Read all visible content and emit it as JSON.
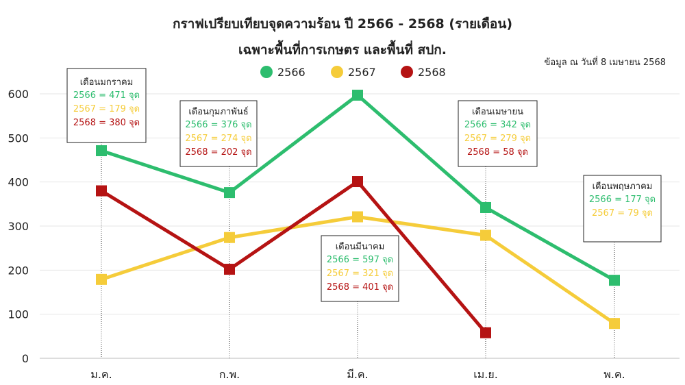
{
  "title_line1": "กราฟเปรียบเทียบจุดความร้อน ปี 2566 - 2568 (รายเดือน)",
  "title_line2": "เฉพาะพื้นที่การเกษตร และพื้นที่ สปก.",
  "data_note": "ข้อมูล ณ วันที่ 8 เมษายน 2568",
  "chart_data": {
    "type": "line",
    "categories": [
      "ม.ค.",
      "ก.พ.",
      "มี.ค.",
      "เม.ย.",
      "พ.ค."
    ],
    "ylim": [
      0,
      600
    ],
    "yticks": [
      0,
      100,
      200,
      300,
      400,
      500,
      600
    ],
    "grid": true,
    "legend_position": "top-center",
    "series": [
      {
        "name": "2566",
        "color": "#2dbd6e",
        "values": [
          471,
          376,
          597,
          342,
          177
        ]
      },
      {
        "name": "2567",
        "color": "#f5cc3a",
        "values": [
          179,
          274,
          321,
          279,
          79
        ]
      },
      {
        "name": "2568",
        "color": "#b51313",
        "values": [
          380,
          202,
          401,
          58,
          null
        ]
      }
    ],
    "annotations": [
      {
        "month_index": 0,
        "title": "เดือนมกราคม",
        "lines": [
          {
            "text": "2566 = 471 จุด",
            "color": "#2dbd6e"
          },
          {
            "text": "2567 = 179 จุด",
            "color": "#f5cc3a"
          },
          {
            "text": "2568 = 380 จุด",
            "color": "#b51313"
          }
        ]
      },
      {
        "month_index": 1,
        "title": "เดือนกุมภาพันธ์",
        "lines": [
          {
            "text": "2566 = 376 จุด",
            "color": "#2dbd6e"
          },
          {
            "text": "2567 = 274 จุด",
            "color": "#f5cc3a"
          },
          {
            "text": "2568 = 202 จุด",
            "color": "#b51313"
          }
        ]
      },
      {
        "month_index": 2,
        "title": "เดือนมีนาคม",
        "lines": [
          {
            "text": "2566 = 597 จุด",
            "color": "#2dbd6e"
          },
          {
            "text": "2567 = 321 จุด",
            "color": "#f5cc3a"
          },
          {
            "text": "2568 = 401 จุด",
            "color": "#b51313"
          }
        ]
      },
      {
        "month_index": 3,
        "title": "เดือนเมษายน",
        "lines": [
          {
            "text": "2566 = 342 จุด",
            "color": "#2dbd6e"
          },
          {
            "text": "2567 = 279 จุด",
            "color": "#f5cc3a"
          },
          {
            "text": "2568 = 58 จุด",
            "color": "#b51313"
          }
        ]
      },
      {
        "month_index": 4,
        "title": "เดือนพฤษภาคม",
        "lines": [
          {
            "text": "2566 = 177 จุด",
            "color": "#2dbd6e"
          },
          {
            "text": "2567 = 79 จุด",
            "color": "#f5cc3a"
          }
        ]
      }
    ]
  }
}
